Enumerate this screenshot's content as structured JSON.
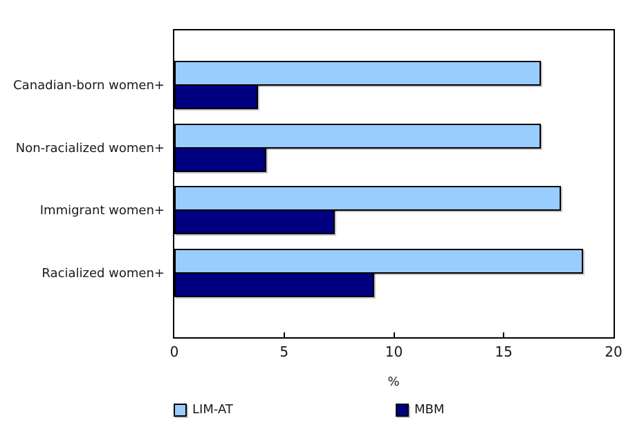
{
  "chart_data": {
    "type": "bar",
    "orientation": "horizontal",
    "categories": [
      "Canadian-born women+",
      "Non-racialized women+",
      "Immigrant women+",
      "Racialized women+"
    ],
    "series": [
      {
        "name": "LIM-AT",
        "color": "#99CCFF",
        "values": [
          16.7,
          16.7,
          17.6,
          18.6
        ]
      },
      {
        "name": "MBM",
        "color": "#000080",
        "values": [
          3.8,
          4.2,
          7.3,
          9.1
        ]
      }
    ],
    "title": "",
    "xlabel": "%",
    "ylabel": "",
    "xlim": [
      0,
      20
    ],
    "xticks": [
      0,
      5,
      10,
      15,
      20
    ],
    "grid": false,
    "legend_position": "bottom",
    "bar_border_color": "#000000",
    "axis_color": "#000000",
    "text_color": "#1a1a1a",
    "background_color": "#ffffff"
  }
}
